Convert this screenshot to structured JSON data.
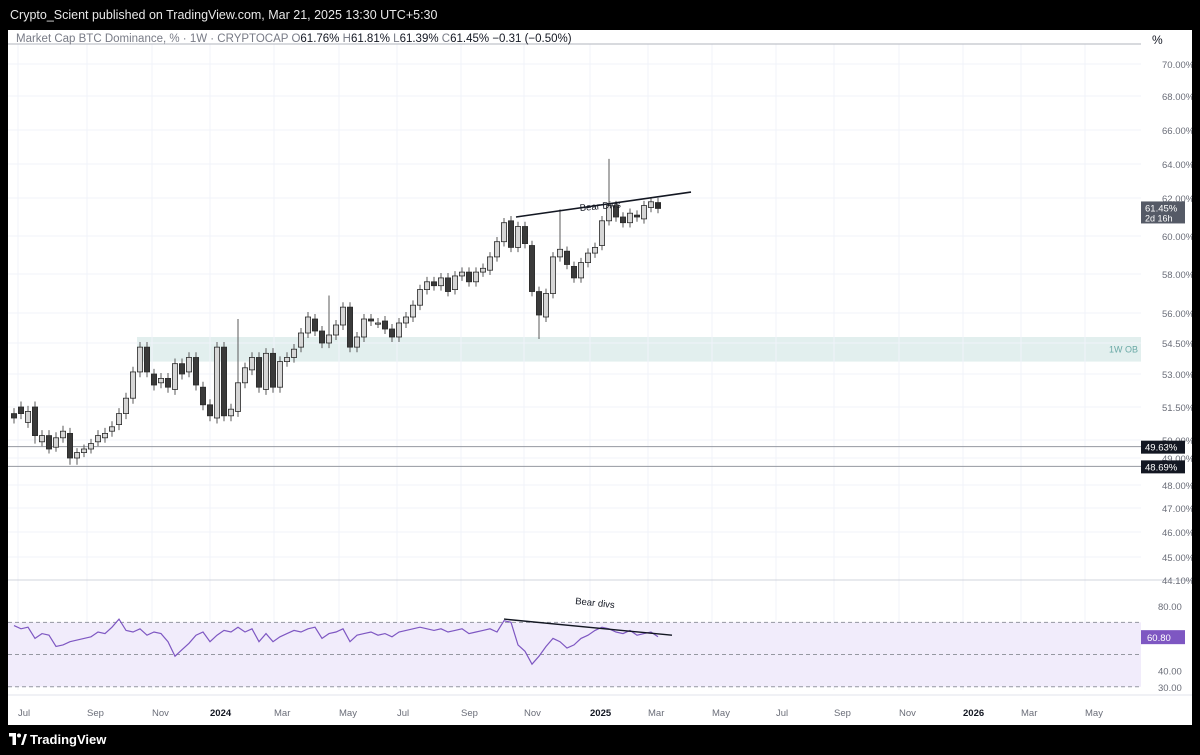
{
  "header": {
    "published": "Crypto_Scient published on TradingView.com, Mar 21, 2025 13:30 UTC+5:30"
  },
  "legend": {
    "symbol": "Market Cap BTC Dominance, % · 1W · CRYPTOCAP",
    "o_label": "O",
    "o_value": "61.76%",
    "h_label": "H",
    "h_value": "61.81%",
    "l_label": "L",
    "l_value": "61.39%",
    "c_label": "C",
    "c_value": "61.45%",
    "change": "−0.31 (−0.50%)",
    "unit": "%"
  },
  "footer": {
    "brand": "TradingView"
  },
  "colors": {
    "up_fill": "#d6d6d6",
    "down_fill": "#3a3a3a",
    "wick": "#5a5a5a",
    "ob_zone": "#e2efee",
    "rsi_line": "#7e57c2",
    "rsi_band": "#f1ecfb"
  },
  "chart_data": [
    {
      "type": "candlestick",
      "title": "Market Cap BTC Dominance, %",
      "timeframe": "1W",
      "ylim": [
        44.1,
        71
      ],
      "y_ticks": [
        "70.00%",
        "68.00%",
        "66.00%",
        "64.00%",
        "62.00%",
        "60.00%",
        "58.00%",
        "56.00%",
        "54.50%",
        "53.00%",
        "51.50%",
        "50.00%",
        "49.00%",
        "48.00%",
        "47.00%",
        "46.00%",
        "45.00%",
        "44.10%"
      ],
      "x_tick_labels": [
        "Jul",
        "Sep",
        "Nov",
        "2024",
        "Mar",
        "May",
        "Jul",
        "Sep",
        "Nov",
        "2025",
        "Mar",
        "May",
        "Jul",
        "Sep",
        "Nov",
        "2026",
        "Mar",
        "May"
      ],
      "last_price_label": "61.45%",
      "countdown_label": "2d 16h",
      "horizontal_levels": [
        {
          "value": 49.63,
          "label": "49.63%"
        },
        {
          "value": 48.69,
          "label": "48.69%"
        }
      ],
      "zone": {
        "label": "1W OB",
        "low": 53.6,
        "high": 54.8
      },
      "annotation": {
        "text": "Bear Divs",
        "from": [
          61.2,
          "Nov 2024"
        ],
        "to": [
          62.4,
          "Apr 2025"
        ]
      },
      "candles_oc": [
        [
          51.2,
          51.0
        ],
        [
          51.5,
          51.2
        ],
        [
          50.8,
          51.3
        ],
        [
          51.5,
          50.2
        ],
        [
          49.9,
          50.2
        ],
        [
          50.2,
          49.5
        ],
        [
          49.6,
          50.1
        ],
        [
          50.1,
          50.4
        ],
        [
          50.3,
          49.0
        ],
        [
          49.0,
          49.3
        ],
        [
          49.3,
          49.5
        ],
        [
          49.5,
          49.8
        ],
        [
          49.9,
          50.2
        ],
        [
          50.1,
          50.3
        ],
        [
          50.4,
          50.6
        ],
        [
          50.7,
          51.2
        ],
        [
          51.2,
          51.9
        ],
        [
          51.9,
          53.1
        ],
        [
          53.1,
          54.3
        ],
        [
          54.3,
          53.1
        ],
        [
          53.0,
          52.5
        ],
        [
          52.6,
          52.8
        ],
        [
          52.8,
          52.4
        ],
        [
          52.3,
          53.5
        ],
        [
          53.5,
          53.0
        ],
        [
          53.1,
          53.8
        ],
        [
          53.8,
          52.5
        ],
        [
          52.4,
          51.6
        ],
        [
          51.6,
          51.1
        ],
        [
          51.0,
          54.3
        ],
        [
          54.3,
          51.1
        ],
        [
          51.1,
          51.4
        ],
        [
          51.3,
          52.6
        ],
        [
          52.6,
          53.3
        ],
        [
          53.2,
          53.8
        ],
        [
          53.8,
          52.4
        ],
        [
          52.3,
          54.0
        ],
        [
          54.0,
          52.4
        ],
        [
          52.4,
          53.6
        ],
        [
          53.6,
          53.8
        ],
        [
          53.8,
          54.2
        ],
        [
          54.3,
          55.0
        ],
        [
          55.0,
          55.8
        ],
        [
          55.7,
          55.1
        ],
        [
          55.1,
          54.5
        ],
        [
          54.5,
          54.9
        ],
        [
          54.9,
          55.4
        ],
        [
          55.4,
          56.3
        ],
        [
          56.3,
          54.3
        ],
        [
          54.3,
          54.8
        ],
        [
          54.8,
          55.7
        ],
        [
          55.7,
          55.6
        ],
        [
          55.5,
          55.5
        ],
        [
          55.6,
          55.2
        ],
        [
          55.2,
          54.8
        ],
        [
          54.8,
          55.5
        ],
        [
          55.5,
          55.8
        ],
        [
          55.8,
          56.4
        ],
        [
          56.4,
          57.2
        ],
        [
          57.2,
          57.6
        ],
        [
          57.6,
          57.4
        ],
        [
          57.4,
          57.8
        ],
        [
          57.8,
          57.1
        ],
        [
          57.2,
          57.9
        ],
        [
          57.9,
          58.1
        ],
        [
          58.1,
          57.6
        ],
        [
          57.6,
          58.1
        ],
        [
          58.1,
          58.3
        ],
        [
          58.2,
          58.9
        ],
        [
          58.9,
          59.7
        ],
        [
          59.7,
          60.7
        ],
        [
          60.8,
          59.4
        ],
        [
          59.4,
          60.5
        ],
        [
          60.5,
          59.6
        ],
        [
          59.5,
          57.1
        ],
        [
          57.1,
          55.9
        ],
        [
          55.8,
          57.0
        ],
        [
          57.0,
          58.9
        ],
        [
          58.9,
          59.3
        ],
        [
          59.2,
          58.5
        ],
        [
          58.4,
          57.8
        ],
        [
          57.8,
          58.6
        ],
        [
          58.6,
          59.1
        ],
        [
          59.1,
          59.4
        ],
        [
          59.5,
          60.8
        ],
        [
          60.8,
          61.6
        ],
        [
          61.6,
          61.0
        ],
        [
          61.0,
          60.7
        ],
        [
          60.7,
          61.2
        ],
        [
          61.1,
          61.0
        ],
        [
          60.9,
          61.6
        ],
        [
          61.5,
          61.8
        ],
        [
          61.76,
          61.45
        ]
      ]
    },
    {
      "type": "line",
      "title": "RSI",
      "ylim": [
        28,
        82
      ],
      "y_ticks": [
        "80.00",
        "60.80",
        "40.00",
        "30.00"
      ],
      "bands": [
        70,
        50,
        30
      ],
      "last_value_label": "60.80",
      "annotation": {
        "text": "Bear divs"
      },
      "values": [
        68,
        66,
        67,
        60,
        63,
        62,
        55,
        56,
        58,
        59,
        60,
        61,
        64,
        63,
        67,
        72,
        65,
        64,
        66,
        62,
        64,
        63,
        58,
        49,
        53,
        57,
        62,
        64,
        58,
        62,
        65,
        64,
        67,
        64,
        66,
        58,
        63,
        58,
        61,
        63,
        65,
        64,
        66,
        67,
        60,
        63,
        64,
        66,
        58,
        62,
        63,
        64,
        62,
        63,
        61,
        64,
        65,
        66,
        67,
        66,
        65,
        66,
        64,
        65,
        66,
        63,
        64,
        65,
        66,
        64,
        71,
        70,
        56,
        52,
        44,
        49,
        55,
        60,
        58,
        54,
        56,
        60,
        62,
        65,
        67,
        66,
        64,
        63,
        65,
        62,
        63,
        64,
        61
      ]
    }
  ]
}
